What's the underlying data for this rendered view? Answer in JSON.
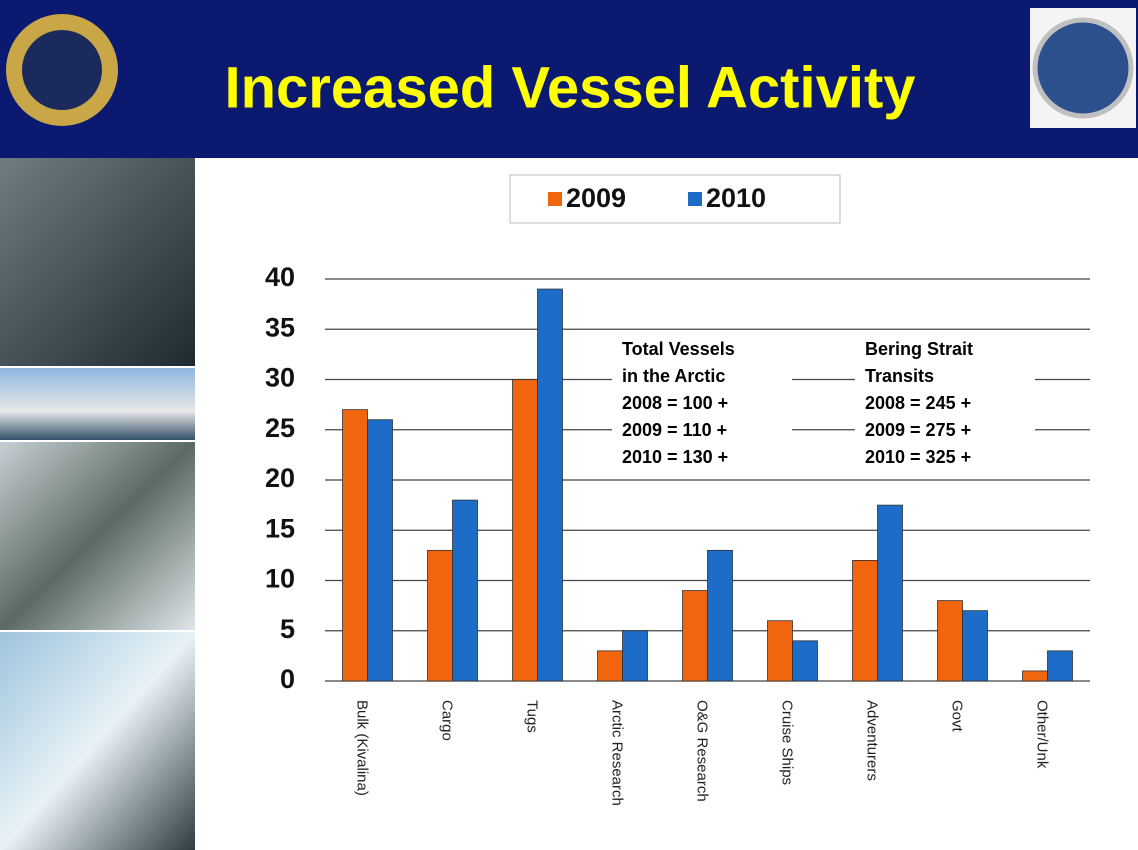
{
  "chart_data": {
    "type": "bar",
    "title": "Increased Vessel Activity",
    "categories": [
      "Bulk (Kivalina)",
      "Cargo",
      "Tugs",
      "Arctic Research",
      "O&G Research",
      "Cruise Ships",
      "Adventurers",
      "Govt",
      "Other/Unk"
    ],
    "series": [
      {
        "name": "2009",
        "color": "#f0650e",
        "values": [
          27,
          13,
          30,
          3,
          9,
          6,
          12,
          8,
          1
        ]
      },
      {
        "name": "2010",
        "color": "#1c6cc8",
        "values": [
          26,
          18,
          39,
          5,
          13,
          4,
          17.5,
          7,
          3
        ]
      }
    ],
    "ylim": [
      0,
      40
    ],
    "yticks": [
      0,
      5,
      10,
      15,
      20,
      25,
      30,
      35,
      40
    ],
    "grid": true,
    "annotations": [
      [
        "Total Vessels",
        "in the Arctic",
        "2008 = 100 +",
        "2009 = 110 +",
        "2010 = 130 +"
      ],
      [
        "Bering Strait",
        "Transits",
        "2008 = 245 +",
        "2009 = 275 +",
        "2010 = 325 +"
      ]
    ]
  }
}
